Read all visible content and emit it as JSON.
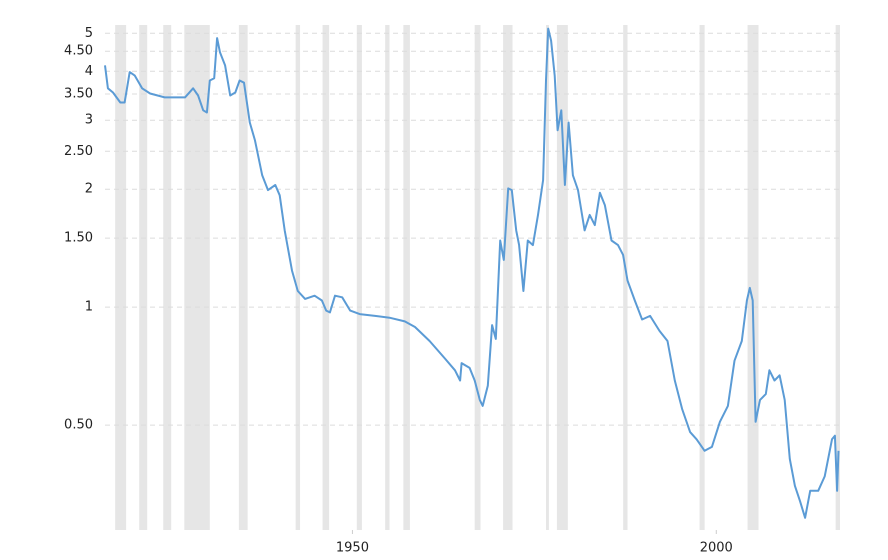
{
  "chart_data": {
    "type": "line",
    "log_y": true,
    "grid": true,
    "xlim": [
      1916,
      2017
    ],
    "xticks": [
      1950,
      2000
    ],
    "ylim": [
      0.27,
      5.25
    ],
    "yticks": [
      {
        "value": 0.5,
        "label": "0.50"
      },
      1,
      {
        "value": 1.5,
        "label": "1.50"
      },
      2,
      {
        "value": 2.5,
        "label": "2.50"
      },
      3,
      {
        "value": 3.5,
        "label": "3.50"
      },
      4,
      {
        "value": 4.5,
        "label": "4.50"
      },
      5
    ],
    "band_color": "#e6e6e6",
    "bands": [
      [
        1917.4,
        1918.9
      ],
      [
        1920.7,
        1921.8
      ],
      [
        1924.0,
        1925.1
      ],
      [
        1926.9,
        1930.4
      ],
      [
        1934.4,
        1935.6
      ],
      [
        1942.2,
        1942.8
      ],
      [
        1945.9,
        1946.8
      ],
      [
        1950.6,
        1951.3
      ],
      [
        1954.5,
        1955.1
      ],
      [
        1957.0,
        1957.9
      ],
      [
        1966.8,
        1967.6
      ],
      [
        1970.7,
        1972.0
      ],
      [
        1976.6,
        1977.0
      ],
      [
        1978.1,
        1979.6
      ],
      [
        1987.2,
        1987.8
      ],
      [
        1997.7,
        1998.4
      ],
      [
        2004.3,
        2005.8
      ],
      [
        2016.4,
        2017.0
      ]
    ],
    "series": [
      {
        "color": "#5b9bd5",
        "x": [
          1916.0,
          1916.4,
          1917.1,
          1918.1,
          1918.7,
          1919.4,
          1920.1,
          1921.1,
          1922.2,
          1924.2,
          1925.6,
          1927.0,
          1928.1,
          1928.8,
          1929.5,
          1930.0,
          1930.4,
          1931.0,
          1931.4,
          1931.8,
          1932.5,
          1933.2,
          1933.9,
          1934.5,
          1935.1,
          1935.9,
          1936.6,
          1937.6,
          1938.4,
          1939.4,
          1940.0,
          1940.7,
          1941.7,
          1942.5,
          1943.5,
          1944.8,
          1945.8,
          1946.4,
          1946.9,
          1947.6,
          1948.6,
          1949.7,
          1951.0,
          1953.1,
          1955.1,
          1957.2,
          1958.6,
          1960.6,
          1962.7,
          1964.1,
          1964.8,
          1965.0,
          1966.1,
          1966.8,
          1967.5,
          1967.9,
          1968.6,
          1969.2,
          1969.7,
          1970.3,
          1970.8,
          1971.4,
          1971.9,
          1972.5,
          1972.9,
          1973.5,
          1974.1,
          1974.8,
          1975.5,
          1976.2,
          1976.6,
          1976.9,
          1977.3,
          1977.8,
          1978.2,
          1978.7,
          1979.2,
          1979.7,
          1980.3,
          1981.0,
          1981.9,
          1982.6,
          1983.3,
          1984.0,
          1984.7,
          1985.6,
          1986.5,
          1987.2,
          1987.8,
          1988.8,
          1989.8,
          1990.9,
          1992.2,
          1993.3,
          1994.3,
          1995.3,
          1996.4,
          1997.3,
          1998.4,
          1999.4,
          2000.5,
          2001.6,
          2002.5,
          2003.5,
          2004.2,
          2004.6,
          2005.0,
          2005.4,
          2006.0,
          2006.8,
          2007.3,
          2008.0,
          2008.7,
          2009.4,
          2010.1,
          2010.8,
          2011.5,
          2012.2,
          2012.9,
          2014.0,
          2014.9,
          2015.9,
          2016.3,
          2016.6,
          2016.8
        ],
        "values": [
          4.14,
          3.62,
          3.53,
          3.33,
          3.33,
          3.98,
          3.9,
          3.62,
          3.51,
          3.43,
          3.43,
          3.43,
          3.62,
          3.47,
          3.18,
          3.14,
          3.79,
          3.84,
          4.86,
          4.47,
          4.14,
          3.47,
          3.53,
          3.79,
          3.74,
          2.96,
          2.67,
          2.17,
          1.99,
          2.05,
          1.93,
          1.57,
          1.24,
          1.1,
          1.05,
          1.07,
          1.04,
          0.98,
          0.97,
          1.07,
          1.06,
          0.98,
          0.96,
          0.95,
          0.94,
          0.92,
          0.89,
          0.82,
          0.74,
          0.69,
          0.65,
          0.72,
          0.7,
          0.65,
          0.58,
          0.56,
          0.63,
          0.9,
          0.83,
          1.48,
          1.32,
          2.01,
          1.99,
          1.57,
          1.44,
          1.1,
          1.48,
          1.44,
          1.72,
          2.11,
          3.79,
          5.14,
          4.79,
          3.9,
          2.83,
          3.18,
          2.05,
          2.96,
          2.17,
          1.99,
          1.57,
          1.72,
          1.62,
          1.96,
          1.82,
          1.48,
          1.44,
          1.36,
          1.17,
          1.04,
          0.93,
          0.95,
          0.87,
          0.82,
          0.65,
          0.55,
          0.48,
          0.46,
          0.43,
          0.44,
          0.51,
          0.56,
          0.73,
          0.82,
          1.04,
          1.12,
          1.04,
          0.51,
          0.58,
          0.6,
          0.69,
          0.65,
          0.67,
          0.58,
          0.41,
          0.35,
          0.32,
          0.29,
          0.34,
          0.34,
          0.37,
          0.46,
          0.47,
          0.34,
          0.43
        ]
      }
    ]
  }
}
